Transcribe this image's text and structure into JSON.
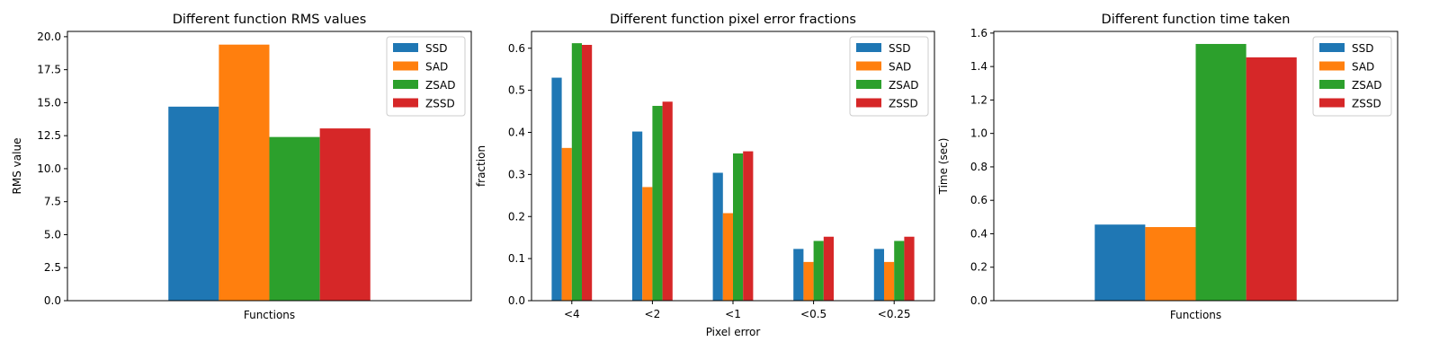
{
  "colors": {
    "SSD": "#1f77b4",
    "SAD": "#ff7f0e",
    "ZSAD": "#2ca02c",
    "ZSSD": "#d62728"
  },
  "chart_data": [
    {
      "type": "bar",
      "title": "Different function RMS values",
      "xlabel": "Functions",
      "ylabel": "RMS value",
      "categories": [
        ""
      ],
      "series": [
        {
          "name": "SSD",
          "values": [
            14.7
          ]
        },
        {
          "name": "SAD",
          "values": [
            19.4
          ]
        },
        {
          "name": "ZSAD",
          "values": [
            12.4
          ]
        },
        {
          "name": "ZSSD",
          "values": [
            13.05
          ]
        }
      ],
      "ylim": [
        0,
        20.4
      ],
      "yticks": [
        0.0,
        2.5,
        5.0,
        7.5,
        10.0,
        12.5,
        15.0,
        17.5,
        20.0
      ],
      "ytick_labels": [
        "0.0",
        "2.5",
        "5.0",
        "7.5",
        "10.0",
        "12.5",
        "15.0",
        "17.5",
        "20.0"
      ],
      "legend": "top-right",
      "grid": false
    },
    {
      "type": "bar",
      "title": "Different function pixel error fractions",
      "xlabel": "Pixel error",
      "ylabel": "fraction",
      "categories": [
        "<4",
        "<2",
        "<1",
        "<0.5",
        "<0.25"
      ],
      "series": [
        {
          "name": "SSD",
          "values": [
            0.53,
            0.402,
            0.304,
            0.123,
            0.123
          ]
        },
        {
          "name": "SAD",
          "values": [
            0.363,
            0.27,
            0.208,
            0.092,
            0.092
          ]
        },
        {
          "name": "ZSAD",
          "values": [
            0.612,
            0.463,
            0.35,
            0.142,
            0.142
          ]
        },
        {
          "name": "ZSSD",
          "values": [
            0.608,
            0.473,
            0.355,
            0.152,
            0.152
          ]
        }
      ],
      "ylim": [
        0,
        0.64
      ],
      "yticks": [
        0.0,
        0.1,
        0.2,
        0.3,
        0.4,
        0.5,
        0.6
      ],
      "ytick_labels": [
        "0.0",
        "0.1",
        "0.2",
        "0.3",
        "0.4",
        "0.5",
        "0.6"
      ],
      "legend": "top-right",
      "grid": false
    },
    {
      "type": "bar",
      "title": "Different function time taken",
      "xlabel": "Functions",
      "ylabel": "Time (sec)",
      "categories": [
        ""
      ],
      "series": [
        {
          "name": "SSD",
          "values": [
            0.455
          ]
        },
        {
          "name": "SAD",
          "values": [
            0.44
          ]
        },
        {
          "name": "ZSAD",
          "values": [
            1.535
          ]
        },
        {
          "name": "ZSSD",
          "values": [
            1.455
          ]
        }
      ],
      "ylim": [
        0,
        1.61
      ],
      "yticks": [
        0.0,
        0.2,
        0.4,
        0.6,
        0.8,
        1.0,
        1.2,
        1.4,
        1.6
      ],
      "ytick_labels": [
        "0.0",
        "0.2",
        "0.4",
        "0.6",
        "0.8",
        "1.0",
        "1.2",
        "1.4",
        "1.6"
      ],
      "legend": "top-right",
      "grid": false
    }
  ]
}
